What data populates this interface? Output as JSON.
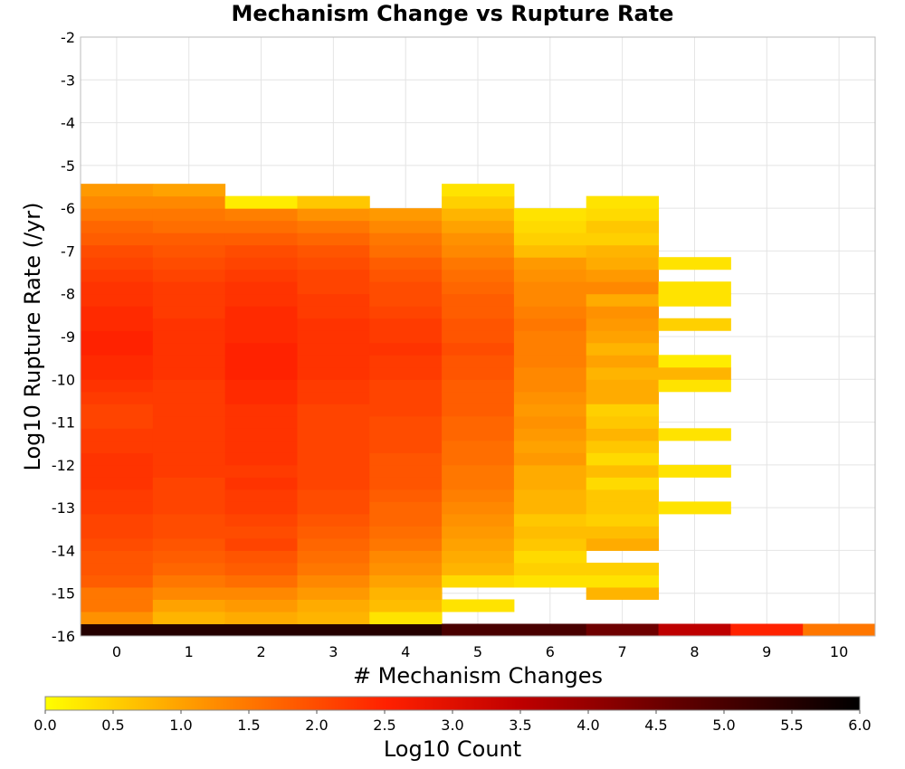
{
  "chart_data": {
    "type": "heatmap",
    "title": "Mechanism Change vs Rupture Rate",
    "xlabel": "# Mechanism Changes",
    "ylabel": "Log10 Rupture Rate (/yr)",
    "x_ticks": [
      "0",
      "1",
      "2",
      "3",
      "4",
      "5",
      "6",
      "7",
      "8",
      "9",
      "10"
    ],
    "y_ticks": [
      "-2",
      "-3",
      "-4",
      "-5",
      "-6",
      "-7",
      "-8",
      "-9",
      "-10",
      "-11",
      "-12",
      "-13",
      "-14",
      "-15",
      "-16"
    ],
    "xlim": [
      -0.5,
      10.5
    ],
    "ylim": [
      -16,
      -2
    ],
    "bin_height": 0.2857,
    "grid": true,
    "colorbar": {
      "label": "Log10 Count",
      "min": 0,
      "max": 6,
      "ticks": [
        "0.0",
        "0.5",
        "1.0",
        "1.5",
        "2.0",
        "2.5",
        "3.0",
        "3.5",
        "4.0",
        "4.5",
        "5.0",
        "5.5",
        "6.0"
      ],
      "placement": "bottom",
      "colors": [
        "#ffff00",
        "#ffa500",
        "#ff2000",
        "#c00000",
        "#600000",
        "#000000"
      ]
    },
    "columns": [
      {
        "x": 0,
        "y_start": -16,
        "values": [
          5.5,
          1.2,
          1.5,
          1.5,
          1.8,
          1.9,
          1.9,
          2.0,
          2.1,
          2.1,
          2.2,
          2.2,
          2.3,
          2.3,
          2.3,
          2.2,
          2.2,
          2.1,
          2.1,
          2.2,
          2.3,
          2.4,
          2.4,
          2.5,
          2.5,
          2.4,
          2.4,
          2.3,
          2.3,
          2.2,
          2.1,
          2.0,
          1.8,
          1.7,
          1.5,
          1.3,
          1.1
        ]
      },
      {
        "x": 1,
        "y_start": -16,
        "values": [
          5.5,
          0.8,
          1.0,
          1.3,
          1.5,
          1.7,
          1.8,
          1.9,
          2.0,
          2.0,
          2.1,
          2.1,
          2.1,
          2.2,
          2.2,
          2.2,
          2.2,
          2.2,
          2.2,
          2.2,
          2.2,
          2.3,
          2.3,
          2.3,
          2.3,
          2.3,
          2.2,
          2.2,
          2.2,
          2.1,
          2.0,
          1.9,
          1.8,
          1.6,
          1.5,
          1.3,
          1.0
        ]
      },
      {
        "x": 2,
        "y_start": -16,
        "values": [
          5.5,
          0.9,
          1.1,
          1.3,
          1.6,
          1.8,
          1.9,
          2.1,
          2.0,
          2.1,
          2.2,
          2.2,
          2.3,
          2.2,
          2.3,
          2.3,
          2.3,
          2.3,
          2.3,
          2.4,
          2.4,
          2.5,
          2.5,
          2.5,
          2.4,
          2.4,
          2.4,
          2.3,
          2.3,
          2.2,
          2.1,
          2.0,
          1.8,
          1.6,
          1.4,
          0.2
        ]
      },
      {
        "x": 3,
        "y_start": -16,
        "values": [
          5.5,
          0.8,
          0.9,
          1.1,
          1.3,
          1.5,
          1.6,
          1.7,
          1.8,
          1.9,
          2.0,
          2.0,
          2.1,
          2.1,
          2.1,
          2.1,
          2.1,
          2.1,
          2.1,
          2.2,
          2.2,
          2.3,
          2.3,
          2.3,
          2.3,
          2.3,
          2.2,
          2.2,
          2.1,
          2.1,
          2.0,
          1.9,
          1.7,
          1.5,
          1.2,
          0.6
        ]
      },
      {
        "x": 4,
        "y_start": -16,
        "values": [
          5.5,
          0.3,
          0.7,
          0.8,
          1.0,
          1.2,
          1.3,
          1.5,
          1.6,
          1.7,
          1.7,
          1.8,
          1.9,
          1.9,
          1.9,
          2.0,
          2.0,
          2.0,
          2.1,
          2.1,
          2.1,
          2.2,
          2.2,
          2.3,
          2.2,
          2.2,
          2.1,
          2.0,
          2.0,
          1.9,
          1.8,
          1.6,
          1.5,
          1.3,
          1.1
        ]
      },
      {
        "x": 5,
        "y_start": -16,
        "values": [
          5.0,
          null,
          0.3,
          null,
          0.4,
          0.8,
          0.9,
          1.0,
          1.1,
          1.2,
          1.3,
          1.4,
          1.5,
          1.5,
          1.6,
          1.6,
          1.7,
          1.7,
          1.8,
          1.8,
          1.8,
          1.9,
          1.9,
          2.0,
          1.9,
          1.9,
          1.8,
          1.8,
          1.7,
          1.6,
          1.5,
          1.3,
          1.2,
          1.0,
          0.8,
          0.5,
          0.3
        ]
      },
      {
        "x": 6,
        "y_start": -16,
        "values": [
          5.0,
          null,
          null,
          null,
          0.3,
          0.5,
          0.4,
          0.6,
          0.7,
          0.6,
          0.8,
          0.8,
          0.9,
          0.9,
          1.1,
          1.0,
          1.1,
          1.2,
          1.1,
          1.2,
          1.3,
          1.3,
          1.4,
          1.4,
          1.4,
          1.5,
          1.4,
          1.3,
          1.3,
          1.2,
          1.1,
          0.7,
          0.5,
          0.4,
          0.3
        ]
      },
      {
        "x": 7,
        "y_start": -16,
        "values": [
          4.5,
          null,
          null,
          0.8,
          0.3,
          0.5,
          null,
          0.9,
          0.7,
          0.5,
          0.6,
          0.6,
          0.4,
          0.7,
          0.4,
          0.6,
          0.8,
          0.6,
          0.5,
          0.9,
          0.9,
          0.8,
          1.0,
          0.8,
          1.0,
          1.1,
          1.2,
          0.9,
          1.3,
          1.1,
          0.9,
          0.8,
          0.5,
          0.6,
          0.4,
          0.3
        ]
      },
      {
        "x": 8,
        "y_start": -16,
        "values": [
          3.5,
          null,
          null,
          null,
          null,
          null,
          null,
          null,
          null,
          null,
          0.3,
          null,
          null,
          0.3,
          null,
          null,
          0.3,
          null,
          null,
          null,
          0.3,
          0.8,
          0.2,
          null,
          null,
          0.5,
          null,
          0.3,
          0.3,
          null,
          0.3
        ]
      },
      {
        "x": 9,
        "y_start": -16,
        "values": [
          2.5
        ]
      },
      {
        "x": 10,
        "y_start": -16,
        "values": [
          1.5
        ]
      }
    ]
  }
}
